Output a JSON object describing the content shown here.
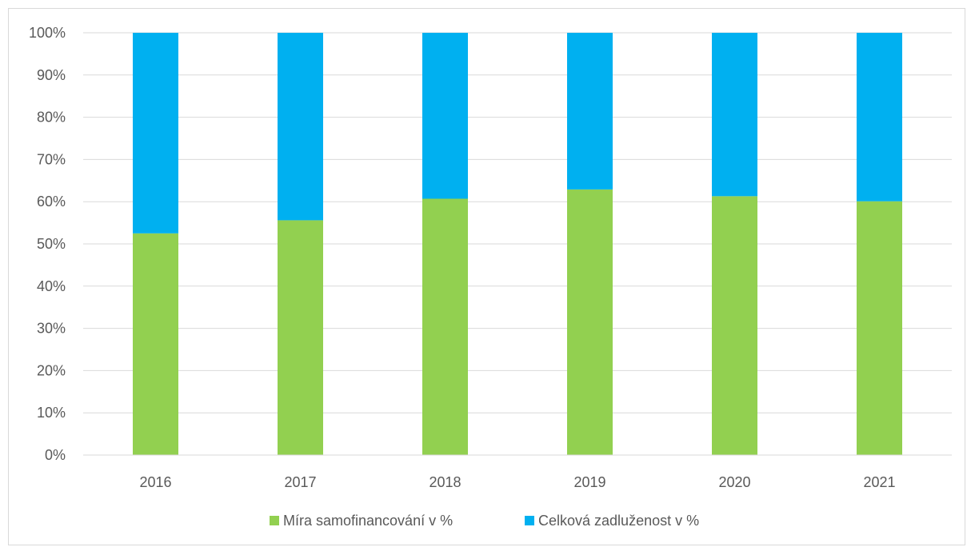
{
  "chart_data": {
    "type": "bar",
    "stacked": "percent",
    "categories": [
      "2016",
      "2017",
      "2018",
      "2019",
      "2020",
      "2021"
    ],
    "series": [
      {
        "name": "Míra samofinancování v %",
        "color": "#92d050",
        "values": [
          52.5,
          55.6,
          60.7,
          62.9,
          61.3,
          60.1
        ]
      },
      {
        "name": "Celková zadluženost v %",
        "color": "#00b0f0",
        "values": [
          47.5,
          44.4,
          39.3,
          37.1,
          38.7,
          39.9
        ]
      }
    ],
    "y_ticks": [
      "0%",
      "10%",
      "20%",
      "30%",
      "40%",
      "50%",
      "60%",
      "70%",
      "80%",
      "90%",
      "100%"
    ],
    "ylim": [
      0,
      100
    ],
    "grid": true,
    "legend_position": "bottom"
  }
}
